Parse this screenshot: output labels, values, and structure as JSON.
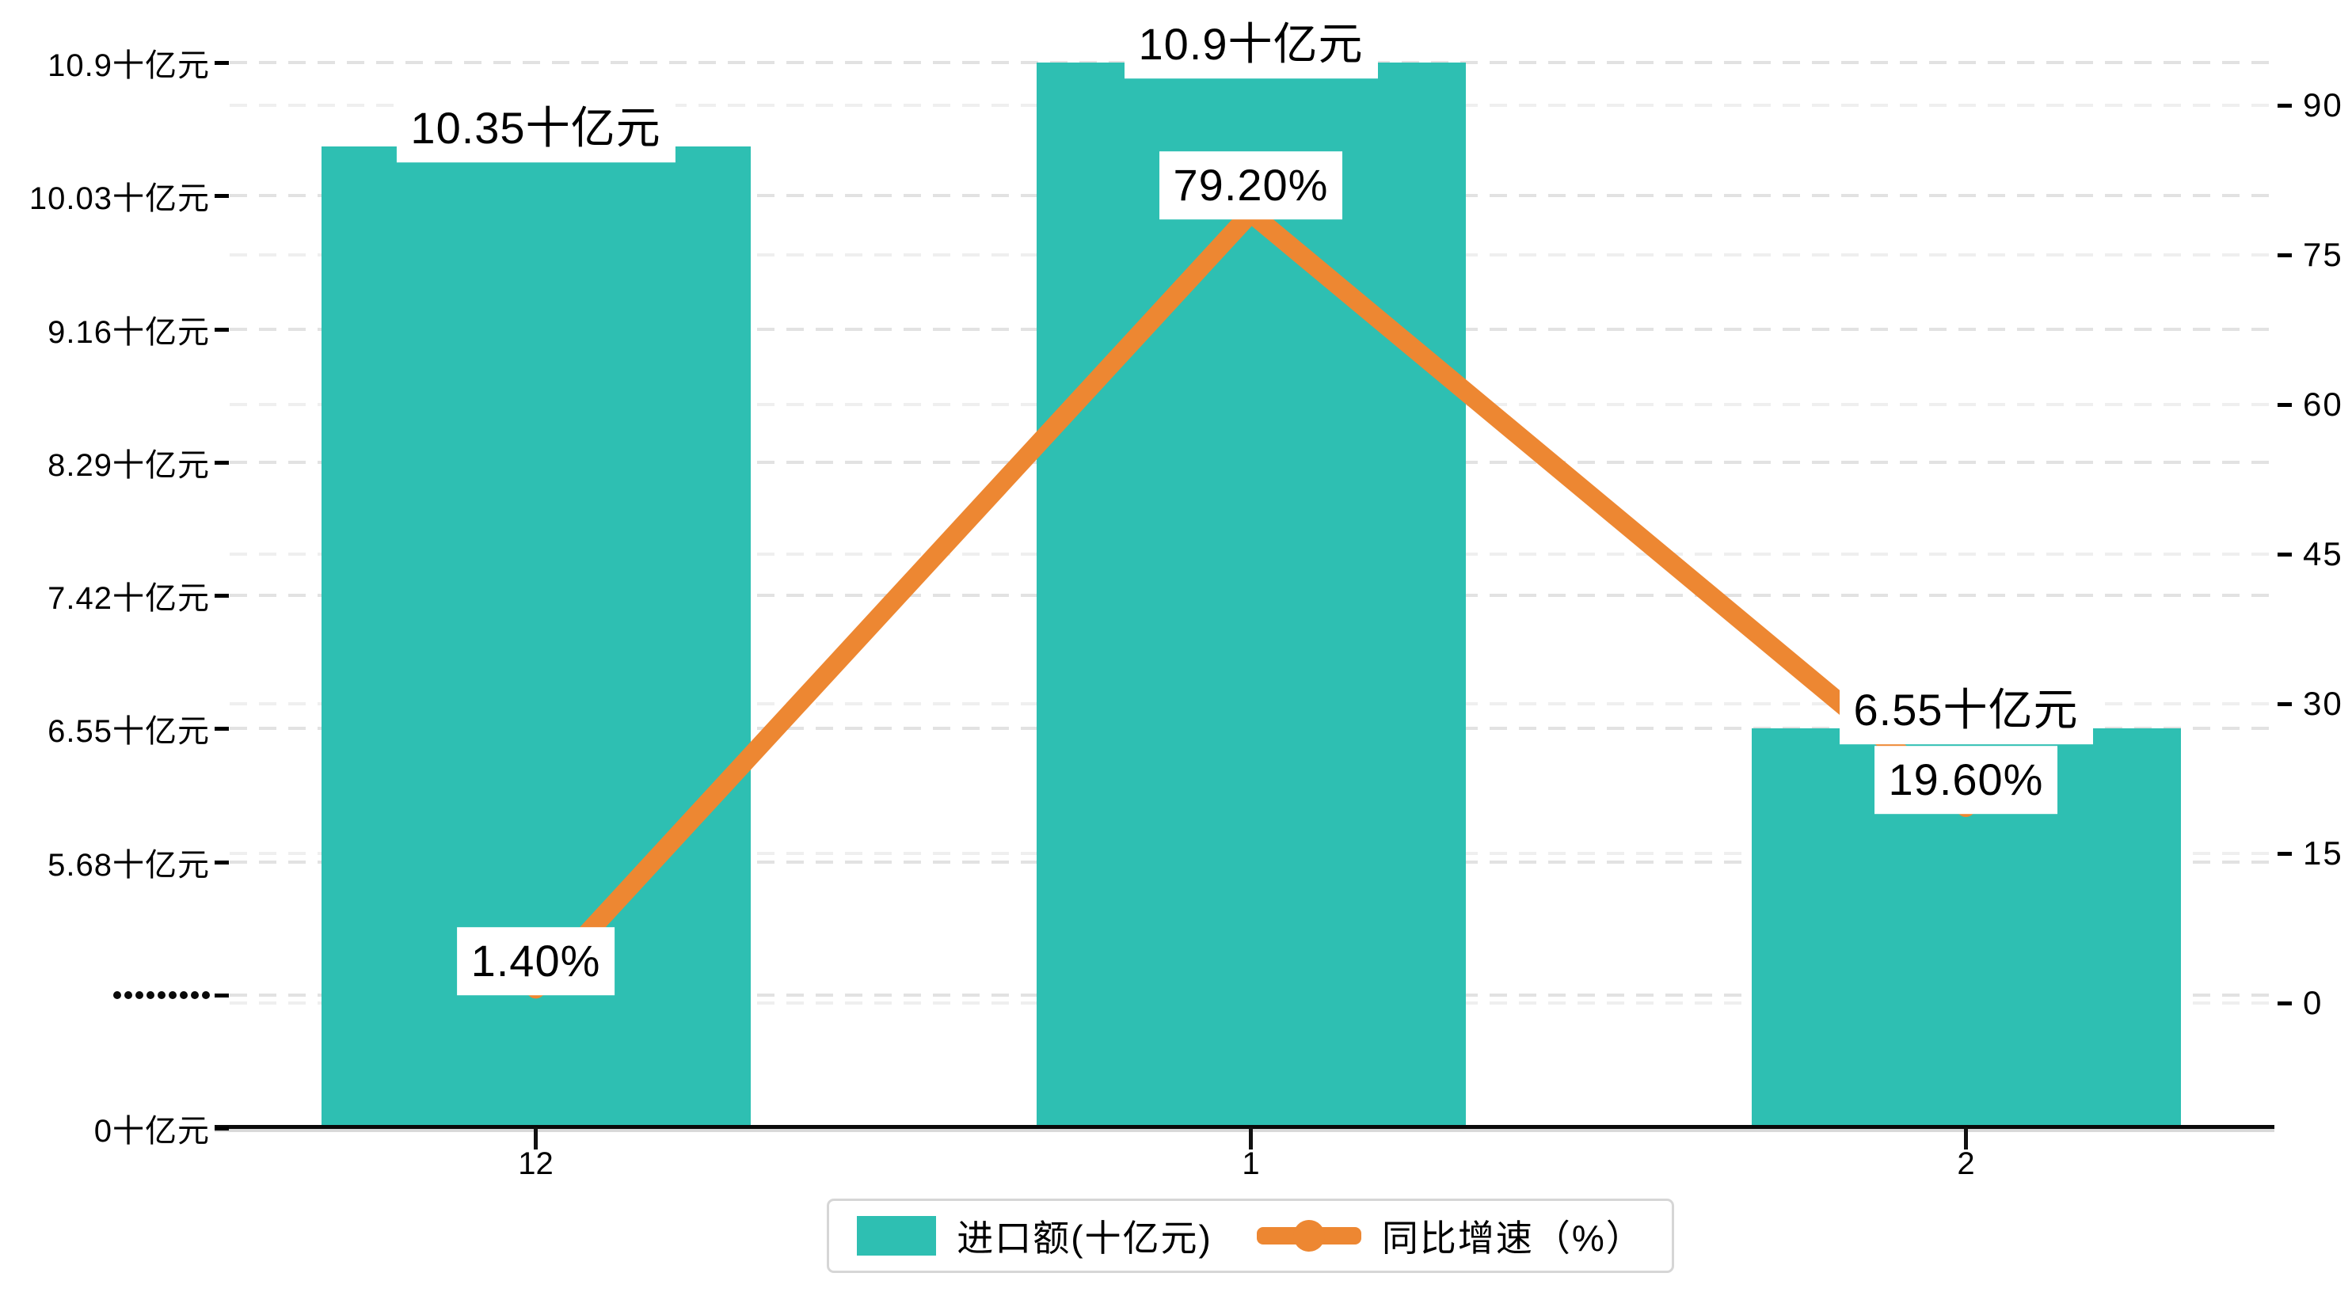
{
  "chart_data": {
    "type": "bar+line dual-axis combo",
    "categories": [
      "12",
      "1",
      "2"
    ],
    "series": [
      {
        "name": "进口额(十亿元)",
        "type": "bar",
        "values": [
          10.35,
          10.9,
          6.55
        ],
        "value_labels": [
          "10.35十亿元",
          "10.9十亿元",
          "6.55十亿元"
        ],
        "color": "#2EBFB2"
      },
      {
        "name": "同比增速（%）",
        "type": "line",
        "values": [
          1.4,
          79.2,
          19.6
        ],
        "value_labels": [
          "1.40%",
          "79.20%",
          "19.60%"
        ],
        "color": "#ED8732"
      }
    ],
    "left_axis": {
      "tick_labels_bottom_up": [
        "0十亿元",
        "·········",
        "5.68十亿元",
        "6.55十亿元",
        "7.42十亿元",
        "8.29十亿元",
        "9.16十亿元",
        "10.03十亿元",
        "10.9十亿元"
      ],
      "break_tick_index": 1,
      "break_dot_count": 9,
      "unit": "十亿元",
      "range_note": "broken axis: 0 then compressed gap then 5.68..10.9 step 0.87"
    },
    "right_axis": {
      "tick_labels_bottom_up": [
        "0",
        "15",
        "30",
        "45",
        "60",
        "75",
        "90"
      ],
      "step": 15,
      "min": 0,
      "max": 90
    },
    "grid": {
      "dashed": true,
      "major_color": "#e2e2e2",
      "minor_color": "#efefef"
    },
    "legend": {
      "position": "bottom-center",
      "items": [
        {
          "label": "进口额(十亿元)",
          "marker": "bar",
          "color": "#2EBFB2"
        },
        {
          "label": "同比增速（%）",
          "marker": "line-dot",
          "color": "#ED8732"
        }
      ]
    },
    "colors": {
      "bar": "#2EBFB2",
      "line": "#ED8732",
      "label_bg": "#ffffff",
      "text": "#000000"
    }
  }
}
